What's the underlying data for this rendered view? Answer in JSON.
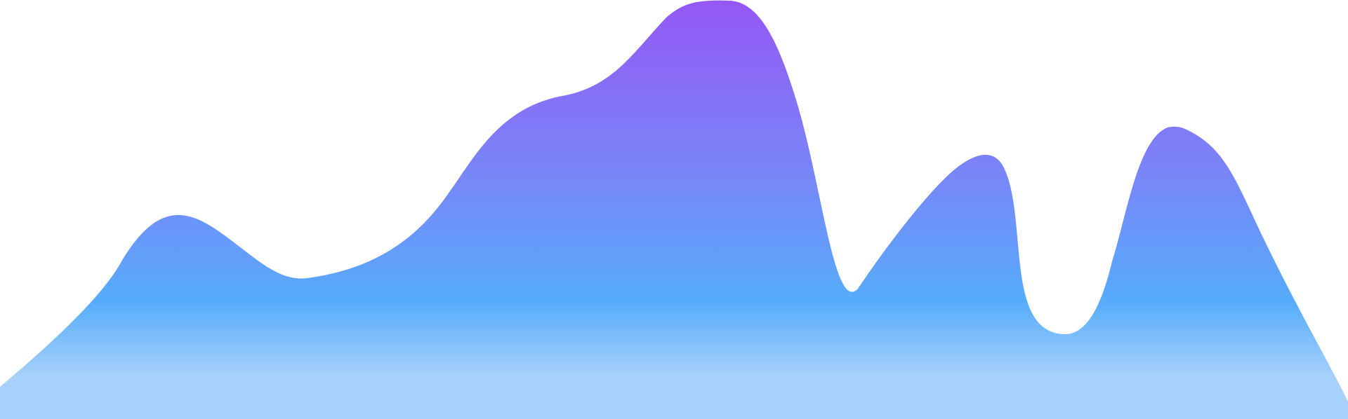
{
  "background": "#ffffff",
  "wave": {
    "colors": {
      "top": "#9458f5",
      "upper_mid": "#7a84f8",
      "mid": "#56acfb",
      "bottom": "#a7d1fb"
    }
  }
}
